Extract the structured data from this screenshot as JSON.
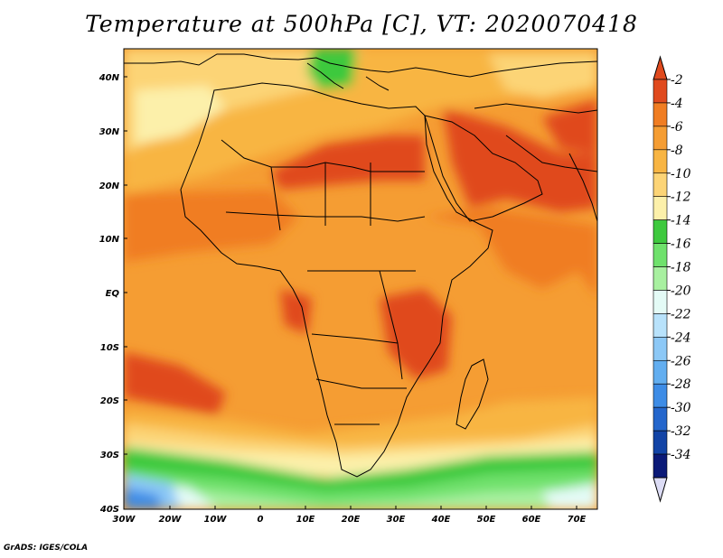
{
  "title": "Temperature at 500hPa [C], VT: 2020070418",
  "credit": "GrADS: IGES/COLA",
  "map": {
    "lat_labels": [
      "40N",
      "30N",
      "20N",
      "10N",
      "EQ",
      "10S",
      "20S",
      "30S",
      "40S"
    ],
    "lon_labels": [
      "30W",
      "20W",
      "10W",
      "0",
      "10E",
      "20E",
      "30E",
      "40E",
      "50E",
      "60E",
      "70E"
    ]
  },
  "colorbar": {
    "labels": [
      "-2",
      "-4",
      "-6",
      "-8",
      "-10",
      "-12",
      "-14",
      "-16",
      "-18",
      "-20",
      "-22",
      "-24",
      "-26",
      "-28",
      "-30",
      "-32",
      "-34"
    ],
    "colors": [
      "#e04a1e",
      "#f07d22",
      "#f59d33",
      "#f8b543",
      "#fcd476",
      "#fcf0aa",
      "#3ec93e",
      "#6fe16c",
      "#a8f0a0",
      "#e4fbf6",
      "#b8e2fb",
      "#8cc8f6",
      "#62aef0",
      "#3d8ce6",
      "#2466cc",
      "#1244a6",
      "#0b1a78"
    ]
  },
  "regions": [
    {
      "name": "warm-band-sahara",
      "color": "#e04a1e"
    },
    {
      "name": "warm-band-arabia",
      "color": "#e04a1e"
    },
    {
      "name": "cool-band-south",
      "color": "#3ec93e"
    },
    {
      "name": "cold-core-southwest",
      "color": "#3d8ce6"
    }
  ]
}
